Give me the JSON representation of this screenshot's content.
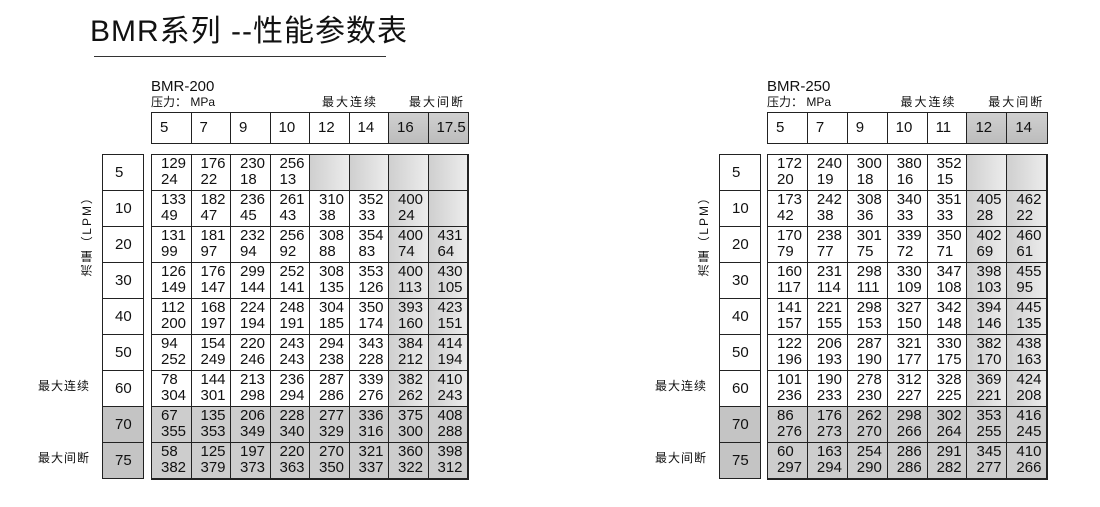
{
  "title": "BMR系列 --性能参数表",
  "flow_label": "流量（LPM）",
  "pressure_label": "压力： MPa",
  "max_continuous": "最大连续",
  "max_intermittent": "最大间断",
  "tables": [
    {
      "model": "BMR-200",
      "pressures": [
        "5",
        "7",
        "9",
        "10",
        "12",
        "14",
        "16",
        "17.5"
      ],
      "gray_pressure_cols": 2,
      "flows": [
        "5",
        "10",
        "20",
        "30",
        "40",
        "50",
        "60",
        "70",
        "75"
      ],
      "cells": [
        [
          [
            "129",
            "24"
          ],
          [
            "176",
            "22"
          ],
          [
            "230",
            "18"
          ],
          [
            "256",
            "13"
          ],
          null,
          null,
          null,
          null
        ],
        [
          [
            "133",
            "49"
          ],
          [
            "182",
            "47"
          ],
          [
            "236",
            "45"
          ],
          [
            "261",
            "43"
          ],
          [
            "310",
            "38"
          ],
          [
            "352",
            "33"
          ],
          [
            "400",
            "24"
          ],
          null
        ],
        [
          [
            "131",
            "99"
          ],
          [
            "181",
            "97"
          ],
          [
            "232",
            "94"
          ],
          [
            "256",
            "92"
          ],
          [
            "308",
            "88"
          ],
          [
            "354",
            "83"
          ],
          [
            "400",
            "74"
          ],
          [
            "431",
            "64"
          ]
        ],
        [
          [
            "126",
            "149"
          ],
          [
            "176",
            "147"
          ],
          [
            "299",
            "144"
          ],
          [
            "252",
            "141"
          ],
          [
            "308",
            "135"
          ],
          [
            "353",
            "126"
          ],
          [
            "400",
            "113"
          ],
          [
            "430",
            "105"
          ]
        ],
        [
          [
            "112",
            "200"
          ],
          [
            "168",
            "197"
          ],
          [
            "224",
            "194"
          ],
          [
            "248",
            "191"
          ],
          [
            "304",
            "185"
          ],
          [
            "350",
            "174"
          ],
          [
            "393",
            "160"
          ],
          [
            "423",
            "151"
          ]
        ],
        [
          [
            "94",
            "252"
          ],
          [
            "154",
            "249"
          ],
          [
            "220",
            "246"
          ],
          [
            "243",
            "243"
          ],
          [
            "294",
            "238"
          ],
          [
            "343",
            "228"
          ],
          [
            "384",
            "212"
          ],
          [
            "414",
            "194"
          ]
        ],
        [
          [
            "78",
            "304"
          ],
          [
            "144",
            "301"
          ],
          [
            "213",
            "298"
          ],
          [
            "236",
            "294"
          ],
          [
            "287",
            "286"
          ],
          [
            "339",
            "276"
          ],
          [
            "382",
            "262"
          ],
          [
            "410",
            "243"
          ]
        ],
        [
          [
            "67",
            "355"
          ],
          [
            "135",
            "353"
          ],
          [
            "206",
            "349"
          ],
          [
            "228",
            "340"
          ],
          [
            "277",
            "329"
          ],
          [
            "336",
            "316"
          ],
          [
            "375",
            "300"
          ],
          [
            "408",
            "288"
          ]
        ],
        [
          [
            "58",
            "382"
          ],
          [
            "125",
            "379"
          ],
          [
            "197",
            "373"
          ],
          [
            "220",
            "363"
          ],
          [
            "270",
            "350"
          ],
          [
            "321",
            "337"
          ],
          [
            "360",
            "322"
          ],
          [
            "398",
            "312"
          ]
        ]
      ]
    },
    {
      "model": "BMR-250",
      "pressures": [
        "5",
        "7",
        "9",
        "10",
        "11",
        "12",
        "14"
      ],
      "gray_pressure_cols": 2,
      "flows": [
        "5",
        "10",
        "20",
        "30",
        "40",
        "50",
        "60",
        "70",
        "75"
      ],
      "cells": [
        [
          [
            "172",
            "20"
          ],
          [
            "240",
            "19"
          ],
          [
            "300",
            "18"
          ],
          [
            "380",
            "16"
          ],
          [
            "352",
            "15"
          ],
          null,
          null
        ],
        [
          [
            "173",
            "42"
          ],
          [
            "242",
            "38"
          ],
          [
            "308",
            "36"
          ],
          [
            "340",
            "33"
          ],
          [
            "351",
            "33"
          ],
          [
            "405",
            "28"
          ],
          [
            "462",
            "22"
          ]
        ],
        [
          [
            "170",
            "79"
          ],
          [
            "238",
            "77"
          ],
          [
            "301",
            "75"
          ],
          [
            "339",
            "72"
          ],
          [
            "350",
            "71"
          ],
          [
            "402",
            "69"
          ],
          [
            "460",
            "61"
          ]
        ],
        [
          [
            "160",
            "117"
          ],
          [
            "231",
            "114"
          ],
          [
            "298",
            "111"
          ],
          [
            "330",
            "109"
          ],
          [
            "347",
            "108"
          ],
          [
            "398",
            "103"
          ],
          [
            "455",
            "95"
          ]
        ],
        [
          [
            "141",
            "157"
          ],
          [
            "221",
            "155"
          ],
          [
            "298",
            "153"
          ],
          [
            "327",
            "150"
          ],
          [
            "342",
            "148"
          ],
          [
            "394",
            "146"
          ],
          [
            "445",
            "135"
          ]
        ],
        [
          [
            "122",
            "196"
          ],
          [
            "206",
            "193"
          ],
          [
            "287",
            "190"
          ],
          [
            "321",
            "177"
          ],
          [
            "330",
            "175"
          ],
          [
            "382",
            "170"
          ],
          [
            "438",
            "163"
          ]
        ],
        [
          [
            "101",
            "236"
          ],
          [
            "190",
            "233"
          ],
          [
            "278",
            "230"
          ],
          [
            "312",
            "227"
          ],
          [
            "328",
            "225"
          ],
          [
            "369",
            "221"
          ],
          [
            "424",
            "208"
          ]
        ],
        [
          [
            "86",
            "276"
          ],
          [
            "176",
            "273"
          ],
          [
            "262",
            "270"
          ],
          [
            "298",
            "266"
          ],
          [
            "302",
            "264"
          ],
          [
            "353",
            "255"
          ],
          [
            "416",
            "245"
          ]
        ],
        [
          [
            "60",
            "297"
          ],
          [
            "163",
            "294"
          ],
          [
            "254",
            "290"
          ],
          [
            "286",
            "286"
          ],
          [
            "291",
            "282"
          ],
          [
            "345",
            "277"
          ],
          [
            "410",
            "266"
          ]
        ]
      ]
    }
  ]
}
